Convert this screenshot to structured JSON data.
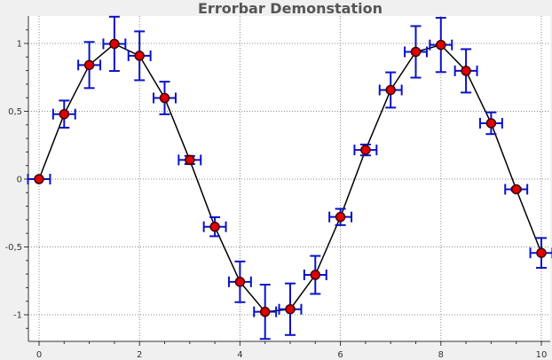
{
  "chart_data": {
    "type": "scatter",
    "title": "Errorbar Demonstation",
    "xlabel": "",
    "ylabel": "",
    "xlim": [
      -0.2,
      10.2
    ],
    "ylim": [
      -1.17,
      1.2
    ],
    "grid": true,
    "x_ticks": [
      0,
      2,
      4,
      6,
      8,
      10
    ],
    "y_ticks": [
      -1,
      -0.5,
      0,
      0.5,
      1
    ],
    "x_tick_labels": [
      "0",
      "2",
      "4",
      "6",
      "8",
      "10"
    ],
    "y_tick_labels": [
      "-1",
      "-0,5",
      "0",
      "0,5",
      "1"
    ],
    "line_color": "#000000",
    "marker_fill": "#e00000",
    "marker_edge": "#400000",
    "errorbar_color": "#0a12c8",
    "series": [
      {
        "x": [
          0,
          0.5,
          1,
          1.5,
          2,
          2.5,
          3,
          3.5,
          4,
          4.5,
          5,
          5.5,
          6,
          6.5,
          7,
          7.5,
          8,
          8.5,
          9,
          9.5,
          10
        ],
        "y": [
          0,
          0.479,
          0.841,
          0.997,
          0.909,
          0.598,
          0.141,
          -0.351,
          -0.757,
          -0.978,
          -0.959,
          -0.706,
          -0.279,
          0.215,
          0.657,
          0.938,
          0.989,
          0.798,
          0.412,
          -0.075,
          -0.544
        ],
        "x_err": [
          0.22,
          0.22,
          0.22,
          0.22,
          0.22,
          0.22,
          0.22,
          0.22,
          0.22,
          0.22,
          0.22,
          0.22,
          0.22,
          0.22,
          0.22,
          0.22,
          0.22,
          0.22,
          0.22,
          0.22,
          0.22
        ],
        "y_err": [
          0,
          0.1,
          0.17,
          0.2,
          0.18,
          0.12,
          0.03,
          0.07,
          0.15,
          0.2,
          0.19,
          0.14,
          0.06,
          0.04,
          0.13,
          0.19,
          0.2,
          0.16,
          0.08,
          0.01,
          0.11
        ]
      }
    ]
  }
}
